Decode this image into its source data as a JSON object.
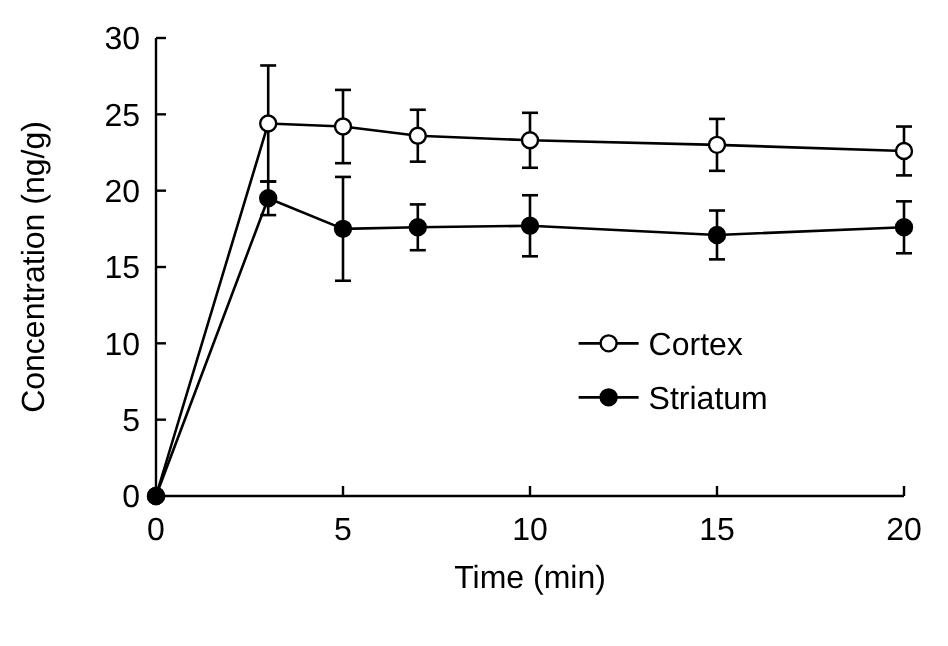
{
  "chart_data": {
    "type": "line",
    "xlabel": "Time (min)",
    "ylabel": "Concentration (ng/g)",
    "xlim": [
      0,
      20
    ],
    "xticks": [
      0,
      5,
      10,
      15,
      20
    ],
    "ylim": [
      0,
      30
    ],
    "yticks": [
      0,
      5,
      10,
      15,
      20,
      25,
      30
    ],
    "x": [
      0,
      3,
      5,
      7,
      10,
      15,
      20
    ],
    "legend": "right",
    "grid": false,
    "series": [
      {
        "name": "Cortex",
        "color": "#000000",
        "marker": "circle",
        "values": [
          0,
          24.4,
          24.2,
          23.6,
          23.3,
          23.0,
          22.6
        ],
        "errors": [
          null,
          3.8,
          2.4,
          1.7,
          1.8,
          1.7,
          1.6
        ]
      },
      {
        "name": "Striatum",
        "color": "#000000",
        "marker": "circle",
        "values": [
          0,
          19.5,
          17.5,
          17.6,
          17.7,
          17.1,
          17.6
        ],
        "errors": [
          null,
          1.1,
          3.4,
          1.5,
          2.0,
          1.6,
          1.7
        ]
      }
    ]
  }
}
